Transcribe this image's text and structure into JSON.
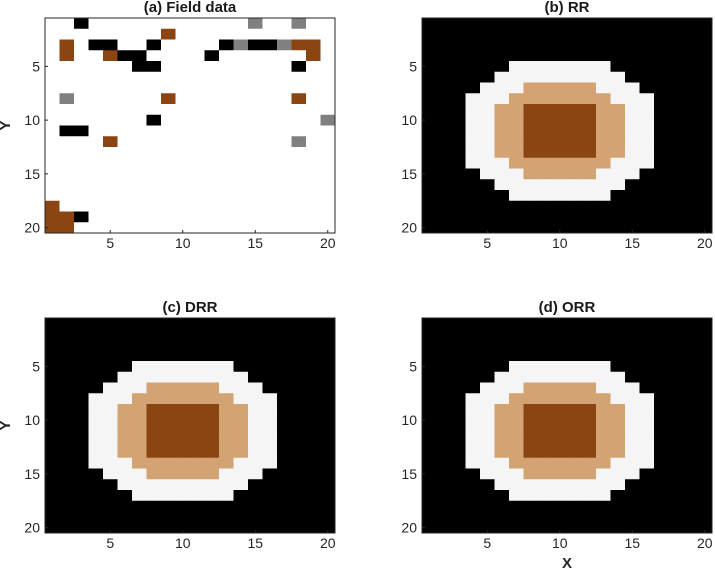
{
  "chart_data": [
    {
      "type": "heatmap",
      "title": "(a) Field data",
      "ylabel": "Y",
      "xlabel": "",
      "xlim": [
        0.5,
        20.5
      ],
      "ylim": [
        0.5,
        20.5
      ],
      "xticks": [
        "5",
        "10",
        "15",
        "20"
      ],
      "yticks": [
        "5",
        "10",
        "15",
        "20"
      ],
      "y_direction": "reverse",
      "grid": false,
      "cell_codes": "0 represents missing data (white)",
      "cells": [
        "00300000200000400400",
        "00000000650002000000",
        "06033003000034334660",
        "06006330000300000060",
        "00000033000000000300",
        "00000000000000000000",
        "00000000000000000500",
        "04000000600000000600",
        "00000000000000500000",
        "00000003000000000004",
        "03300000000000000000",
        "00006000000000000400",
        "00000000000000000000",
        "00000000000000000000",
        "00000000000000000000",
        "00000000000000000000",
        "00000000000000000000",
        "60000000000000000000",
        "66300000000000000000",
        "66000000000000000000"
      ]
    },
    {
      "type": "heatmap",
      "title": "(b) RR",
      "ylabel": "",
      "xlabel": "",
      "xlim": [
        0.5,
        20.5
      ],
      "ylim": [
        0.5,
        20.5
      ],
      "xticks": [
        "5",
        "10",
        "15",
        "20"
      ],
      "yticks": [
        "5",
        "10",
        "15",
        "20"
      ],
      "y_direction": "reverse",
      "grid": false
    },
    {
      "type": "heatmap",
      "title": "(c) DRR",
      "ylabel": "Y",
      "xlabel": "",
      "xlim": [
        0.5,
        20.5
      ],
      "ylim": [
        0.5,
        20.5
      ],
      "xticks": [
        "5",
        "10",
        "15",
        "20"
      ],
      "yticks": [
        "5",
        "10",
        "15",
        "20"
      ],
      "y_direction": "reverse",
      "grid": false
    },
    {
      "type": "heatmap",
      "title": "(d) ORR",
      "ylabel": "",
      "xlabel": "X",
      "xlim": [
        0.5,
        20.5
      ],
      "ylim": [
        0.5,
        20.5
      ],
      "xticks": [
        "5",
        "10",
        "15",
        "20"
      ],
      "yticks": [
        "5",
        "10",
        "15",
        "20"
      ],
      "y_direction": "reverse",
      "grid": false
    }
  ],
  "colors": {
    "background": "#ffffff",
    "brown": "#8b4513",
    "tan": "#d4a373",
    "light": "#f5f5f5",
    "gray": "#808080",
    "dark": "#000000"
  }
}
